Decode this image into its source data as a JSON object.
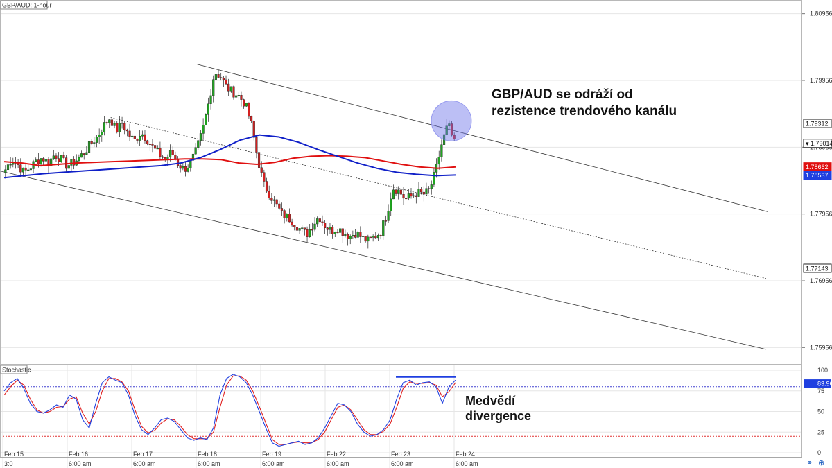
{
  "chart_title": "GBP/AUD: 1-hour",
  "stochastic_title": "Stochastic",
  "annotation_top": [
    "GBP/AUD se odráží od",
    "rezistence trendového kanálu"
  ],
  "annotation_bottom": [
    "Medvědí",
    "divergence"
  ],
  "colors": {
    "bull": "#1fa51f",
    "bear": "#d42020",
    "ema_red": "#e01010",
    "ema_blue": "#1020c8",
    "stoch_k": "#2040e0",
    "stoch_d": "#e02020",
    "highlight": "#6a70e8",
    "grid": "#e6e6e6"
  },
  "chart_data": [
    {
      "type": "candlestick",
      "title": "GBP/AUD: 1-hour",
      "y_ticks": [
        "1.80956",
        "1.79956",
        "1.78956",
        "1.77956",
        "1.76956",
        "1.75956"
      ],
      "price_tags": [
        {
          "label": "1.79312",
          "value": 1.79312,
          "style": "black"
        },
        {
          "label": "▾ 1.79014",
          "value": 1.79014,
          "style": "black"
        },
        {
          "label": "1.78662",
          "value": 1.78662,
          "style": "red"
        },
        {
          "label": "1.78537",
          "value": 1.78537,
          "style": "blue"
        },
        {
          "label": "1.77143",
          "value": 1.77143,
          "style": "black"
        }
      ],
      "ylim": [
        1.757,
        1.8116
      ],
      "x_labels": [
        {
          "date": "Feb 15",
          "time": "3:0"
        },
        {
          "date": "Feb 16",
          "time": "6:00 am"
        },
        {
          "date": "Feb 17",
          "time": "6:00 am"
        },
        {
          "date": "Feb 18",
          "time": "6:00 am"
        },
        {
          "date": "Feb 19",
          "time": "6:00 am"
        },
        {
          "date": "Feb 22",
          "time": "6:00 am"
        },
        {
          "date": "Feb 23",
          "time": "6:00 am"
        },
        {
          "date": "Feb 24",
          "time": "6:00 am"
        }
      ],
      "close_path": [
        1.7862,
        1.7878,
        1.787,
        1.7858,
        1.7865,
        1.7875,
        1.788,
        1.7872,
        1.7885,
        1.7878,
        1.7868,
        1.7872,
        1.788,
        1.789,
        1.7902,
        1.7912,
        1.7928,
        1.794,
        1.792,
        1.7932,
        1.7915,
        1.7905,
        1.7918,
        1.7908,
        1.7895,
        1.7885,
        1.7878,
        1.7888,
        1.7872,
        1.7862,
        1.787,
        1.789,
        1.7918,
        1.796,
        1.8008,
        1.8002,
        1.7985,
        1.7978,
        1.7972,
        1.796,
        1.793,
        1.788,
        1.784,
        1.7825,
        1.781,
        1.7795,
        1.779,
        1.7782,
        1.7772,
        1.7765,
        1.778,
        1.7792,
        1.7778,
        1.777,
        1.7775,
        1.7768,
        1.7762,
        1.7768,
        1.776,
        1.7755,
        1.7762,
        1.7768,
        1.7795,
        1.7835,
        1.783,
        1.7818,
        1.7822,
        1.7828,
        1.7825,
        1.7832,
        1.786,
        1.7902,
        1.793,
        1.7901
      ],
      "ema_red": [
        1.7874,
        1.7872,
        1.7868,
        1.787,
        1.7872,
        1.7873,
        1.7874,
        1.7875,
        1.7876,
        1.7877,
        1.7878,
        1.7878,
        1.7877,
        1.7872,
        1.787,
        1.7873,
        1.7879,
        1.7882,
        1.7883,
        1.7882,
        1.788,
        1.7875,
        1.787,
        1.7866,
        1.7864,
        1.7866
      ],
      "ema_blue": [
        1.785,
        1.7853,
        1.7856,
        1.7858,
        1.786,
        1.7862,
        1.7864,
        1.7866,
        1.7868,
        1.7872,
        1.788,
        1.7892,
        1.7906,
        1.7914,
        1.7911,
        1.7903,
        1.7892,
        1.7882,
        1.7872,
        1.7864,
        1.7858,
        1.7855,
        1.7853,
        1.7854
      ],
      "channel": {
        "upper": [
          [
            1.802,
            0.245
          ],
          [
            1.7799,
            0.957
          ]
        ],
        "middle": [
          [
            1.794,
            0.138
          ],
          [
            1.7699,
            0.955
          ]
        ],
        "lower": [
          [
            1.786,
            0.0
          ],
          [
            1.7593,
            0.955
          ]
        ]
      }
    },
    {
      "type": "line",
      "title": "Stochastic",
      "y_ticks": [
        "100",
        "75",
        "50",
        "25",
        "0"
      ],
      "levels": [
        80,
        20
      ],
      "current_label": "83.96",
      "current_value": 83.96,
      "ylim": [
        0,
        100
      ],
      "k_values": [
        75,
        85,
        90,
        78,
        60,
        50,
        48,
        52,
        58,
        55,
        70,
        65,
        40,
        30,
        60,
        85,
        92,
        88,
        85,
        70,
        45,
        28,
        22,
        30,
        40,
        42,
        38,
        28,
        18,
        15,
        18,
        16,
        30,
        70,
        90,
        95,
        92,
        85,
        70,
        50,
        30,
        12,
        8,
        10,
        12,
        14,
        10,
        12,
        18,
        30,
        45,
        60,
        58,
        50,
        35,
        25,
        20,
        22,
        28,
        40,
        65,
        85,
        88,
        82,
        85,
        86,
        80,
        60,
        80,
        88
      ],
      "d_values": [
        70,
        80,
        88,
        82,
        65,
        52,
        48,
        50,
        55,
        56,
        65,
        68,
        48,
        35,
        50,
        75,
        90,
        90,
        86,
        75,
        52,
        32,
        24,
        27,
        36,
        41,
        40,
        32,
        22,
        17,
        17,
        17,
        25,
        55,
        82,
        93,
        93,
        88,
        75,
        56,
        36,
        16,
        10,
        10,
        12,
        13,
        12,
        12,
        16,
        25,
        40,
        55,
        58,
        52,
        40,
        28,
        22,
        22,
        26,
        35,
        55,
        78,
        86,
        84,
        84,
        85,
        82,
        68,
        74,
        85
      ],
      "divergence_line": [
        92,
        92
      ]
    }
  ]
}
